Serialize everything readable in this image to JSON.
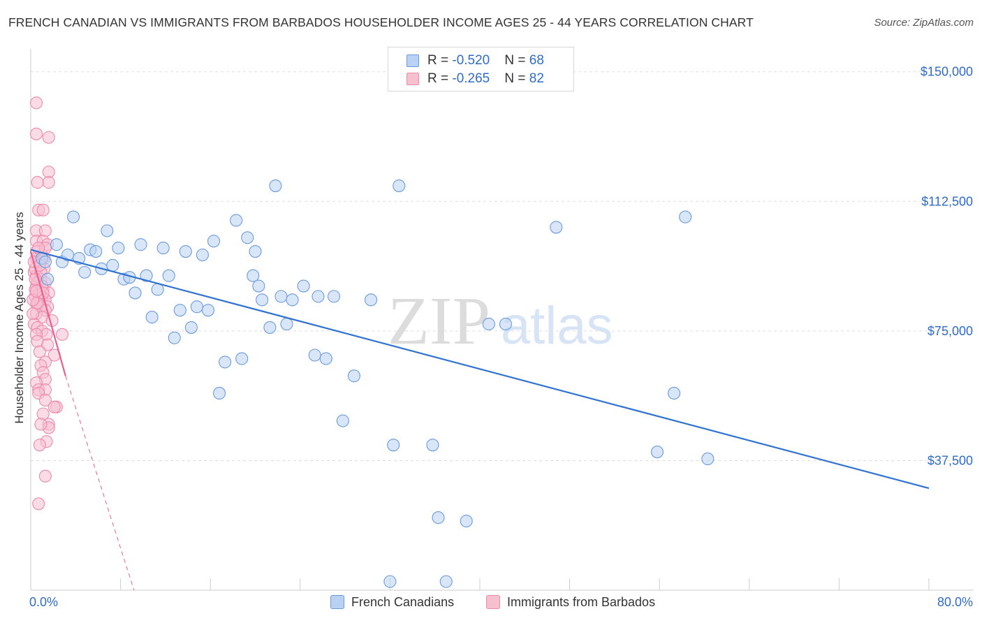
{
  "title": "FRENCH CANADIAN VS IMMIGRANTS FROM BARBADOS HOUSEHOLDER INCOME AGES 25 - 44 YEARS CORRELATION CHART",
  "source": "Source: ZipAtlas.com",
  "watermark": {
    "zip": "ZIP",
    "atlas": "atlas"
  },
  "colors": {
    "blue_fill": "#b9d1f3",
    "blue_stroke": "#6a9be0",
    "blue_line": "#2f72d4",
    "pink_fill": "#f7c0d1",
    "pink_stroke": "#ec8aaa",
    "pink_line": "#e8608f",
    "axis_text": "#2f6cc9",
    "grid": "#dddddd"
  },
  "legend": {
    "rows": [
      {
        "r_label": "R = ",
        "r_value": "-0.520",
        "n_label": "N = ",
        "n_value": "68"
      },
      {
        "r_label": "R = ",
        "r_value": "-0.265",
        "n_label": "N = ",
        "n_value": "82"
      }
    ]
  },
  "bottom_legend": {
    "series1": "French Canadians",
    "series2": "Immigrants from Barbados"
  },
  "chart_data": {
    "type": "scatter",
    "title": "FRENCH CANADIAN VS IMMIGRANTS FROM BARBADOS HOUSEHOLDER INCOME AGES 25 - 44 YEARS CORRELATION CHART",
    "xlabel": "",
    "ylabel": "Householder Income Ages 25 - 44 years",
    "xlim": [
      0,
      80
    ],
    "ylim": [
      0,
      155000
    ],
    "x_tick_labels": [
      "0.0%",
      "80.0%"
    ],
    "y_ticks": [
      37500,
      75000,
      112500,
      150000
    ],
    "y_tick_labels": [
      "$37,500",
      "$75,000",
      "$112,500",
      "$150,000"
    ],
    "grid": true,
    "legend_position": "top-center",
    "series": [
      {
        "name": "French Canadians",
        "color": "#b9d1f3",
        "trend": {
          "x": [
            0,
            80
          ],
          "y": [
            98500,
            29500
          ]
        },
        "points": [
          [
            1.0,
            96000
          ],
          [
            1.5,
            90000
          ],
          [
            1.3,
            95000
          ],
          [
            2.3,
            100000
          ],
          [
            2.8,
            95000
          ],
          [
            3.3,
            97000
          ],
          [
            3.8,
            108000
          ],
          [
            4.3,
            96000
          ],
          [
            4.8,
            92000
          ],
          [
            5.3,
            98500
          ],
          [
            5.8,
            98000
          ],
          [
            6.3,
            93000
          ],
          [
            6.8,
            104000
          ],
          [
            7.3,
            94000
          ],
          [
            7.8,
            99000
          ],
          [
            8.3,
            90000
          ],
          [
            8.8,
            90500
          ],
          [
            9.3,
            86000
          ],
          [
            9.8,
            100000
          ],
          [
            10.3,
            91000
          ],
          [
            10.8,
            79000
          ],
          [
            11.3,
            87000
          ],
          [
            11.8,
            99000
          ],
          [
            12.3,
            91000
          ],
          [
            12.8,
            73000
          ],
          [
            13.3,
            81000
          ],
          [
            13.8,
            98000
          ],
          [
            14.3,
            76000
          ],
          [
            14.8,
            82000
          ],
          [
            15.3,
            97000
          ],
          [
            15.8,
            81000
          ],
          [
            16.3,
            101000
          ],
          [
            16.8,
            57000
          ],
          [
            17.3,
            66000
          ],
          [
            18.3,
            107000
          ],
          [
            18.8,
            67000
          ],
          [
            19.3,
            102000
          ],
          [
            19.8,
            91000
          ],
          [
            20.3,
            88000
          ],
          [
            20.6,
            84000
          ],
          [
            21.3,
            76000
          ],
          [
            21.8,
            117000
          ],
          [
            22.3,
            85000
          ],
          [
            22.8,
            77000
          ],
          [
            23.3,
            84000
          ],
          [
            24.3,
            88000
          ],
          [
            25.3,
            68000
          ],
          [
            25.6,
            85000
          ],
          [
            26.3,
            67000
          ],
          [
            27.8,
            49000
          ],
          [
            28.8,
            62000
          ],
          [
            30.3,
            84000
          ],
          [
            32.3,
            42000
          ],
          [
            32.8,
            117000
          ],
          [
            35.8,
            42000
          ],
          [
            36.3,
            21000
          ],
          [
            38.8,
            20000
          ],
          [
            40.8,
            77000
          ],
          [
            42.3,
            77000
          ],
          [
            46.8,
            105000
          ],
          [
            55.8,
            40000
          ],
          [
            57.3,
            57000
          ],
          [
            58.3,
            108000
          ],
          [
            60.3,
            38000
          ],
          [
            32.0,
            2500
          ],
          [
            37.0,
            2500
          ],
          [
            20.0,
            98000
          ],
          [
            27.0,
            85000
          ]
        ]
      },
      {
        "name": "Immigrants from Barbados",
        "color": "#f7c0d1",
        "trend": {
          "x": [
            0,
            3.1
          ],
          "y": [
            98000,
            62000
          ]
        },
        "trend_dashed": {
          "x": [
            3.1,
            9.2
          ],
          "y": [
            62000,
            0
          ]
        },
        "points": [
          [
            0.5,
            141000
          ],
          [
            0.5,
            132000
          ],
          [
            1.6,
            131000
          ],
          [
            1.6,
            121000
          ],
          [
            1.6,
            118000
          ],
          [
            0.6,
            118000
          ],
          [
            0.7,
            110000
          ],
          [
            1.1,
            110000
          ],
          [
            0.5,
            104000
          ],
          [
            1.3,
            104000
          ],
          [
            0.5,
            101000
          ],
          [
            1.1,
            101000
          ],
          [
            1.5,
            100000
          ],
          [
            0.5,
            98000
          ],
          [
            1.0,
            97000
          ],
          [
            1.3,
            99000
          ],
          [
            0.5,
            96000
          ],
          [
            0.8,
            95000
          ],
          [
            1.2,
            93000
          ],
          [
            0.3,
            92000
          ],
          [
            0.5,
            91000
          ],
          [
            0.9,
            90000
          ],
          [
            1.3,
            89000
          ],
          [
            0.5,
            88000
          ],
          [
            1.1,
            87000
          ],
          [
            1.6,
            86000
          ],
          [
            0.4,
            85000
          ],
          [
            0.7,
            84000
          ],
          [
            1.0,
            85000
          ],
          [
            1.3,
            84000
          ],
          [
            1.5,
            82000
          ],
          [
            0.5,
            83000
          ],
          [
            0.9,
            82000
          ],
          [
            1.3,
            81000
          ],
          [
            0.5,
            80000
          ],
          [
            1.0,
            79000
          ],
          [
            1.9,
            78000
          ],
          [
            0.3,
            77000
          ],
          [
            0.6,
            76000
          ],
          [
            1.0,
            75000
          ],
          [
            1.4,
            74000
          ],
          [
            0.5,
            74000
          ],
          [
            2.8,
            74000
          ],
          [
            0.6,
            72000
          ],
          [
            1.5,
            71000
          ],
          [
            2.1,
            68000
          ],
          [
            0.8,
            69000
          ],
          [
            1.3,
            66000
          ],
          [
            0.9,
            65000
          ],
          [
            1.1,
            63000
          ],
          [
            1.3,
            61000
          ],
          [
            0.5,
            60000
          ],
          [
            0.7,
            58000
          ],
          [
            1.3,
            58000
          ],
          [
            0.7,
            57000
          ],
          [
            1.3,
            55000
          ],
          [
            2.3,
            53000
          ],
          [
            2.1,
            53000
          ],
          [
            1.1,
            51000
          ],
          [
            1.6,
            48000
          ],
          [
            1.6,
            47000
          ],
          [
            0.9,
            48000
          ],
          [
            1.4,
            43000
          ],
          [
            0.8,
            42000
          ],
          [
            1.3,
            33000
          ],
          [
            0.7,
            25000
          ],
          [
            0.4,
            93000
          ],
          [
            0.6,
            89000
          ],
          [
            0.8,
            86000
          ],
          [
            0.2,
            80000
          ],
          [
            0.3,
            95000
          ],
          [
            0.9,
            92000
          ],
          [
            1.2,
            96000
          ],
          [
            0.4,
            87000
          ],
          [
            0.6,
            83000
          ],
          [
            0.7,
            99000
          ],
          [
            1.0,
            88000
          ],
          [
            0.4,
            90000
          ],
          [
            0.2,
            84000
          ],
          [
            0.8,
            94000
          ],
          [
            1.1,
            86000
          ],
          [
            0.5,
            86500
          ]
        ]
      }
    ]
  }
}
